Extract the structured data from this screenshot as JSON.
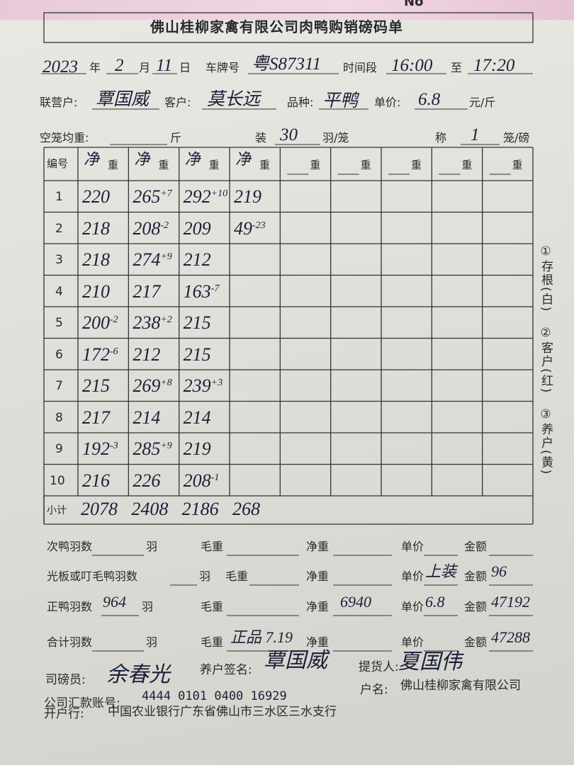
{
  "header": {
    "number_label": "No",
    "title": "佛山桂柳家禽有限公司肉鸭购销磅码单"
  },
  "info": {
    "year": "2023",
    "year_label": "年",
    "month": "2",
    "month_label": "月",
    "day": "11",
    "day_label": "日",
    "plate_label": "车牌号",
    "plate": "粤S87311",
    "time_label": "时间段",
    "time_from": "16:00",
    "time_to_label": "至",
    "time_to": "17:20",
    "partner_label": "联营户:",
    "partner": "覃国威",
    "customer_label": "客户:",
    "customer": "莫长远",
    "variety_label": "品种:",
    "variety": "平鸭",
    "price_label": "单价:",
    "price": "6.8",
    "price_unit": "元/斤",
    "cage_weight_label": "空笼均重:",
    "cage_weight_unit": "斤",
    "pack_label": "装",
    "pack": "30",
    "pack_unit": "羽/笼",
    "weigh_label": "称",
    "weigh": "1",
    "weigh_unit": "笼/磅"
  },
  "table": {
    "index_header": "编号",
    "columns": [
      {
        "hand": "净",
        "label": "重"
      },
      {
        "hand": "净",
        "label": "重"
      },
      {
        "hand": "净",
        "label": "重"
      },
      {
        "hand": "净",
        "label": "重"
      },
      {
        "label": "重"
      },
      {
        "label": "重"
      },
      {
        "label": "重"
      },
      {
        "label": "重"
      },
      {
        "label": "重"
      }
    ],
    "rows": [
      {
        "index": "1",
        "cells": [
          {
            "value": "220"
          },
          {
            "value": "265",
            "adj": "+7"
          },
          {
            "value": "292",
            "adj": "+10"
          },
          {
            "value": "219"
          }
        ]
      },
      {
        "index": "2",
        "cells": [
          {
            "value": "218"
          },
          {
            "value": "208",
            "adj": "-2"
          },
          {
            "value": "209"
          },
          {
            "value": "49",
            "adj": "-23"
          }
        ]
      },
      {
        "index": "3",
        "cells": [
          {
            "value": "218"
          },
          {
            "value": "274",
            "adj": "+9"
          },
          {
            "value": "212"
          }
        ]
      },
      {
        "index": "4",
        "cells": [
          {
            "value": "210"
          },
          {
            "value": "217"
          },
          {
            "value": "163",
            "adj": "-7"
          }
        ]
      },
      {
        "index": "5",
        "cells": [
          {
            "value": "200",
            "adj": "-2"
          },
          {
            "value": "238",
            "adj": "+2"
          },
          {
            "value": "215"
          }
        ]
      },
      {
        "index": "6",
        "cells": [
          {
            "value": "172",
            "adj": "-6"
          },
          {
            "value": "212"
          },
          {
            "value": "215"
          }
        ]
      },
      {
        "index": "7",
        "cells": [
          {
            "value": "215"
          },
          {
            "value": "269",
            "adj": "+8"
          },
          {
            "value": "239",
            "adj": "+3"
          }
        ]
      },
      {
        "index": "8",
        "cells": [
          {
            "value": "217"
          },
          {
            "value": "214"
          },
          {
            "value": "214"
          }
        ]
      },
      {
        "index": "9",
        "cells": [
          {
            "value": "192",
            "adj": "-3"
          },
          {
            "value": "285",
            "adj": "+9"
          },
          {
            "value": "219"
          }
        ]
      },
      {
        "index": "10",
        "cells": [
          {
            "value": "216"
          },
          {
            "value": "226"
          },
          {
            "value": "208",
            "adj": "-1"
          }
        ]
      }
    ],
    "subtotal_label": "小计",
    "subtotals": [
      "2078",
      "2408",
      "2186",
      "268"
    ]
  },
  "side_note": [
    "①存根(白)",
    "②客户(红)",
    "③养户(黄)"
  ],
  "summary": [
    {
      "count_label": "次鸭羽数",
      "count_unit": "羽",
      "gross_label": "毛重",
      "net_label": "净重",
      "price_label": "单价",
      "amount_label": "金额"
    },
    {
      "count_label": "光板或叮毛鸭羽数",
      "count_unit": "羽",
      "gross_label": "毛重",
      "net_label": "净重",
      "price_label": "单价",
      "price": "上装",
      "amount_label": "金额",
      "amount": "96"
    },
    {
      "count_label": "正鸭羽数",
      "count": "964",
      "count_unit": "羽",
      "gross_label": "毛重",
      "net_label": "净重",
      "net": "6940",
      "price_label": "单价",
      "price": "6.8",
      "amount_label": "金额",
      "amount": "47192"
    },
    {
      "count_label": "合计羽数",
      "count_unit": "羽",
      "gross_label": "毛重",
      "gross": "正品 7.19",
      "net_label": "净重",
      "price_label": "单价",
      "amount_label": "金额",
      "amount": "47288"
    }
  ],
  "footer": {
    "weigher_label": "司磅员:",
    "weigher": "余春光",
    "farmer_label": "养户签名:",
    "farmer": "覃国威",
    "receiver_label": "提货人:",
    "receiver": "夏国伟",
    "account_label": "公司汇款账号:",
    "account": "4444 0101 0400 16929",
    "account_name_label": "户名:",
    "account_name": "佛山桂柳家禽有限公司",
    "bank_label": "开户行:",
    "bank": "中国农业银行广东省佛山市三水区三水支行"
  }
}
